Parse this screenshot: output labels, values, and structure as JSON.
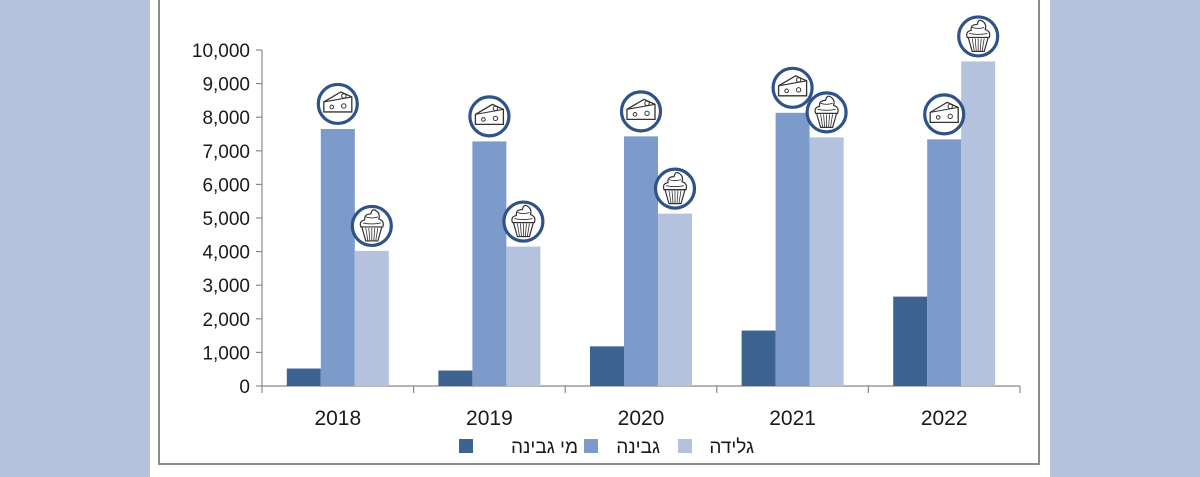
{
  "chart_data": {
    "type": "bar",
    "categories": [
      "2018",
      "2019",
      "2020",
      "2021",
      "2022"
    ],
    "series": [
      {
        "name": "מי גבינה",
        "color": "#3e6391",
        "values": [
          520,
          460,
          1180,
          1650,
          2660
        ]
      },
      {
        "name": "גבינה",
        "color": "#7c9bca",
        "values": [
          7650,
          7280,
          7430,
          8130,
          7340
        ],
        "marker_icon": "cheese-icon"
      },
      {
        "name": "גלידה",
        "color": "#b4c2de",
        "values": [
          4020,
          4150,
          5130,
          7400,
          9660
        ],
        "marker_icon": "ice-cream-icon"
      }
    ],
    "ylim": [
      0,
      10000
    ],
    "yticks": [
      0,
      1000,
      2000,
      3000,
      4000,
      5000,
      6000,
      7000,
      8000,
      9000,
      10000
    ],
    "ytick_labels": [
      "0",
      "1,000",
      "2,000",
      "3,000",
      "4,000",
      "5,000",
      "6,000",
      "7,000",
      "8,000",
      "9,000",
      "10,000"
    ],
    "grid": false,
    "legend_position": "bottom",
    "title": "",
    "xlabel": "",
    "ylabel": ""
  },
  "icon_ring_color": "#2f5287"
}
